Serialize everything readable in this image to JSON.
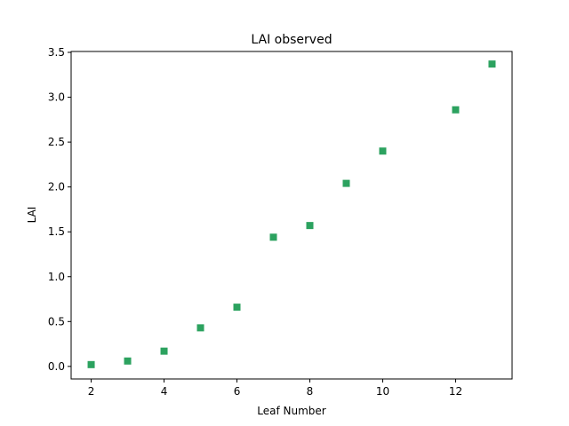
{
  "chart_data": {
    "type": "scatter",
    "title": "LAI observed",
    "xlabel": "Leaf Number",
    "ylabel": "LAI",
    "xlim": [
      1.45,
      13.55
    ],
    "ylim": [
      -0.14,
      3.51
    ],
    "xticks": [
      2,
      4,
      6,
      8,
      10,
      12
    ],
    "xtick_labels": [
      "2",
      "4",
      "6",
      "8",
      "10",
      "12"
    ],
    "yticks": [
      0.0,
      0.5,
      1.0,
      1.5,
      2.0,
      2.5,
      3.0,
      3.5
    ],
    "ytick_labels": [
      "0.0",
      "0.5",
      "1.0",
      "1.5",
      "2.0",
      "2.5",
      "3.0",
      "3.5"
    ],
    "grid": false,
    "marker": "square",
    "series": [
      {
        "color": "#2ca25f",
        "x": [
          2,
          3,
          4,
          5,
          6,
          7,
          8,
          9,
          10,
          12,
          13
        ],
        "y": [
          0.02,
          0.06,
          0.17,
          0.43,
          0.66,
          1.44,
          1.57,
          2.04,
          2.4,
          2.86,
          3.37
        ]
      }
    ]
  }
}
